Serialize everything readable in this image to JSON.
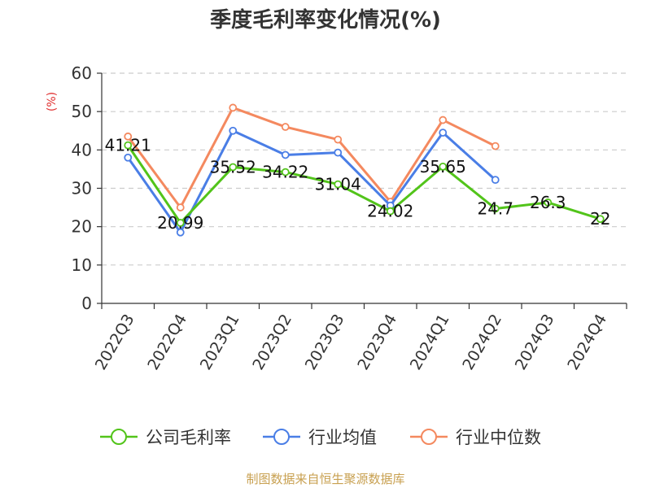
{
  "chart_data": {
    "type": "line",
    "title": "季度毛利率变化情况(%)",
    "ylabel": "(%)",
    "categories": [
      "2022Q3",
      "2022Q4",
      "2023Q1",
      "2023Q2",
      "2023Q3",
      "2023Q4",
      "2024Q1",
      "2024Q2",
      "2024Q3",
      "2024Q4"
    ],
    "ylim": [
      0,
      60
    ],
    "yticks": [
      0,
      10,
      20,
      30,
      40,
      50,
      60
    ],
    "grid": true,
    "legend_position": "bottom",
    "series": [
      {
        "name": "公司毛利率",
        "color": "#52c41a",
        "labeled": true,
        "values": [
          41.21,
          20.99,
          35.52,
          34.22,
          31.04,
          24.02,
          35.65,
          24.7,
          26.3,
          22
        ]
      },
      {
        "name": "行业均值",
        "color": "#4a7ee6",
        "labeled": false,
        "values": [
          38,
          18.5,
          45,
          38.7,
          39.3,
          25.5,
          44.5,
          32.2,
          null,
          null
        ]
      },
      {
        "name": "行业中位数",
        "color": "#f4895f",
        "labeled": false,
        "values": [
          43.5,
          25,
          51,
          46,
          42.7,
          26.5,
          47.8,
          41,
          null,
          null
        ]
      }
    ],
    "source": "制图数据来自恒生聚源数据库"
  }
}
